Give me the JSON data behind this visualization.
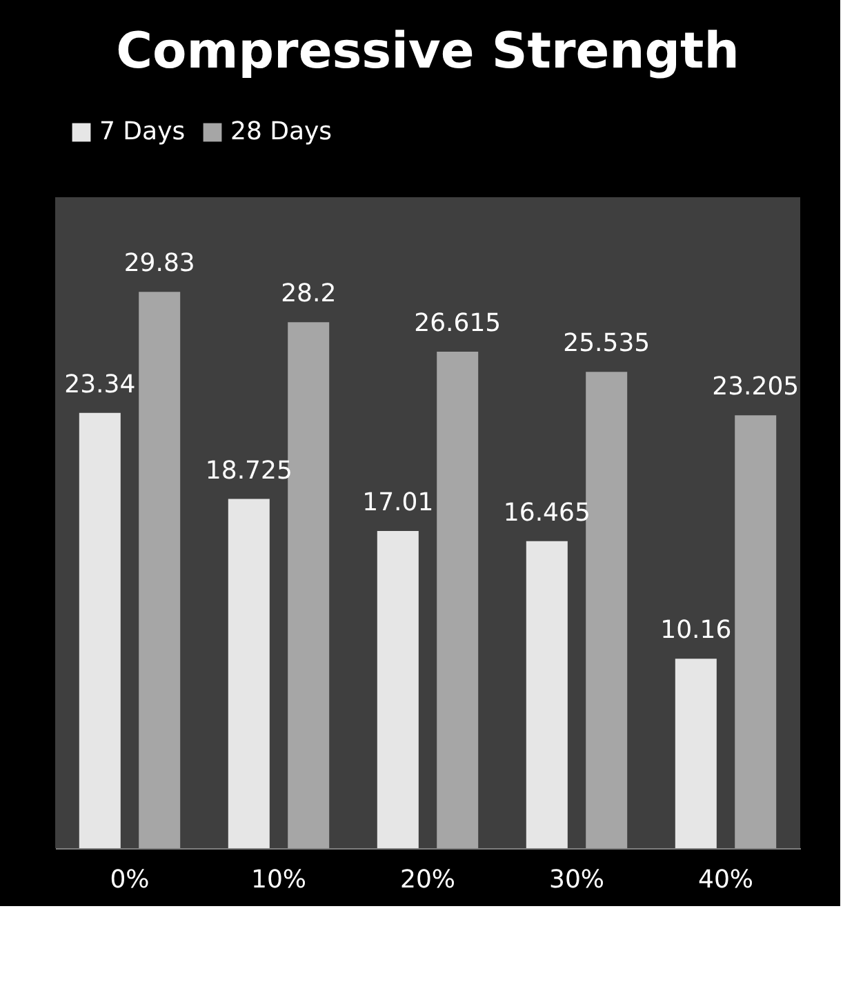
{
  "chart_data": {
    "type": "bar",
    "title": "Compressive Strength",
    "categories": [
      "0%",
      "10%",
      "20%",
      "30%",
      "40%"
    ],
    "series": [
      {
        "name": "7 Days",
        "color": "#e6e6e6",
        "values": [
          23.34,
          18.725,
          17.01,
          16.465,
          10.16
        ]
      },
      {
        "name": "28 Days",
        "color": "#a6a6a6",
        "values": [
          29.83,
          28.2,
          26.615,
          25.535,
          23.205
        ]
      }
    ],
    "data_labels": true,
    "legend": "top",
    "grid": false
  }
}
